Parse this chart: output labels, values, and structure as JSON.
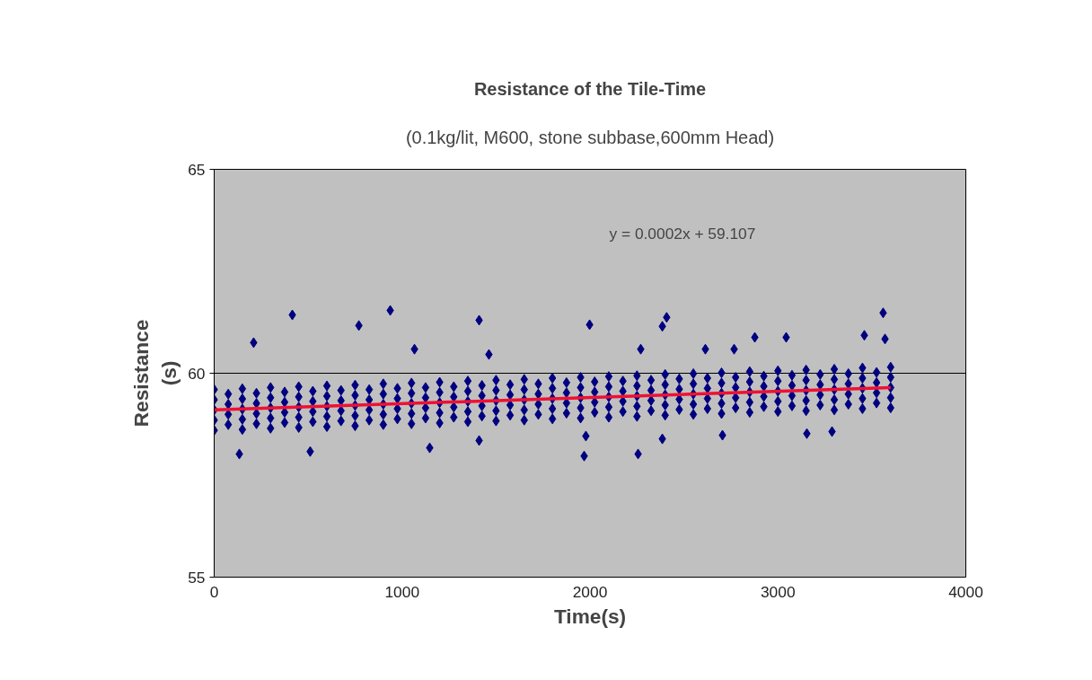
{
  "chart_data": {
    "type": "scatter",
    "title": "Resistance of the Tile-Time",
    "subtitle": "(0.1kg/lit, M600, stone subbase,600mm Head)",
    "xlabel": "Time(s)",
    "ylabel": "Resistance\n(s)",
    "annotations": [
      "y = 0.0002x + 59.107"
    ],
    "xlim": [
      0,
      4000
    ],
    "xticks": [
      0,
      1000,
      2000,
      3000,
      4000
    ],
    "ylim": [
      55,
      65
    ],
    "yticks": [
      55,
      60,
      65
    ],
    "grid": "y",
    "series": [
      {
        "color": "#000080",
        "marker": "diamond",
        "x": [
          0,
          150,
          300,
          450,
          600,
          750,
          900,
          1050,
          1200,
          1350,
          1500,
          1650,
          1800,
          1950,
          2100,
          2250,
          2400,
          2550,
          2700,
          2850,
          3000,
          3150,
          3300,
          3450,
          3600,
          0,
          150,
          300,
          450,
          600,
          750,
          900,
          1050,
          1200,
          1350,
          1500,
          1650,
          1800,
          1950,
          2100,
          2250,
          2400,
          2550,
          2700,
          2850,
          3000,
          3150,
          3300,
          3450,
          3600,
          0,
          150,
          300,
          450,
          600,
          750,
          900,
          1050,
          1200,
          1350,
          1500,
          1650,
          1800,
          1950,
          2100,
          2250,
          2400,
          2550,
          2700,
          2850,
          3000,
          3150,
          3300,
          3450,
          3600,
          0,
          150,
          300,
          450,
          600,
          750,
          900,
          1050,
          1200,
          1350,
          1500,
          1650,
          1800,
          1950,
          2100,
          2250,
          2400,
          2550,
          2700,
          2850,
          3000,
          3150,
          3300,
          3450,
          3600,
          0,
          150,
          300,
          450,
          600,
          750,
          900,
          1050,
          1200,
          1350,
          1500,
          1650,
          1800,
          1950,
          2100,
          2250,
          2400,
          2550,
          2700,
          2850,
          3000,
          3150,
          3300,
          3450,
          3600,
          75,
          225,
          375,
          525,
          675,
          825,
          975,
          1125,
          1275,
          1425,
          1575,
          1725,
          1875,
          2025,
          2175,
          2325,
          2475,
          2625,
          2775,
          2925,
          3075,
          3225,
          3375,
          3525,
          75,
          225,
          375,
          525,
          675,
          825,
          975,
          1125,
          1275,
          1425,
          1575,
          1725,
          1875,
          2025,
          2175,
          2325,
          2475,
          2625,
          2775,
          2925,
          3075,
          3225,
          3375,
          3525,
          75,
          225,
          375,
          525,
          675,
          825,
          975,
          1125,
          1275,
          1425,
          1575,
          1725,
          1875,
          2025,
          2175,
          2325,
          2475,
          2625,
          2775,
          2925,
          3075,
          3225,
          3375,
          3525,
          75,
          225,
          375,
          525,
          675,
          825,
          975,
          1125,
          1275,
          1425,
          1575,
          1725,
          1875,
          2025,
          2175,
          2325,
          2475,
          2625,
          2775,
          2925,
          3075,
          3225,
          3375,
          3525,
          416,
          937,
          770,
          210,
          1410,
          1066,
          1462,
          3560,
          2408,
          2385,
          1998,
          2877,
          3044,
          3460,
          3570,
          2614,
          2767,
          2270,
          134,
          1147,
          511,
          1410,
          1969,
          2256,
          2705,
          3288,
          3154,
          2385,
          1978
        ],
        "values": [
          58.6,
          58.62,
          58.65,
          58.67,
          58.69,
          58.71,
          58.74,
          58.76,
          58.78,
          58.81,
          58.83,
          58.85,
          58.88,
          58.9,
          58.92,
          58.94,
          58.97,
          58.99,
          59.01,
          59.04,
          59.06,
          59.08,
          59.1,
          59.13,
          59.15,
          58.85,
          58.87,
          58.9,
          58.92,
          58.94,
          58.96,
          58.99,
          59.01,
          59.03,
          59.06,
          59.08,
          59.1,
          59.13,
          59.15,
          59.17,
          59.19,
          59.22,
          59.24,
          59.26,
          59.29,
          59.31,
          59.33,
          59.35,
          59.38,
          59.4,
          59.1,
          59.12,
          59.15,
          59.17,
          59.19,
          59.21,
          59.24,
          59.26,
          59.28,
          59.31,
          59.33,
          59.35,
          59.38,
          59.4,
          59.42,
          59.44,
          59.47,
          59.49,
          59.51,
          59.54,
          59.56,
          59.58,
          59.6,
          59.63,
          59.65,
          59.35,
          59.37,
          59.4,
          59.42,
          59.44,
          59.46,
          59.49,
          59.51,
          59.53,
          59.56,
          59.58,
          59.6,
          59.63,
          59.65,
          59.67,
          59.69,
          59.72,
          59.74,
          59.76,
          59.79,
          59.81,
          59.83,
          59.85,
          59.88,
          59.9,
          59.6,
          59.62,
          59.65,
          59.67,
          59.69,
          59.71,
          59.74,
          59.76,
          59.78,
          59.81,
          59.83,
          59.85,
          59.88,
          59.9,
          59.92,
          59.94,
          59.97,
          59.99,
          60.01,
          60.04,
          60.06,
          60.08,
          60.1,
          60.13,
          60.15,
          58.74,
          58.76,
          58.79,
          58.81,
          58.83,
          58.85,
          58.88,
          58.9,
          58.92,
          58.95,
          58.97,
          58.99,
          59.02,
          59.04,
          59.06,
          59.08,
          59.11,
          59.13,
          59.15,
          59.18,
          59.2,
          59.22,
          59.24,
          59.27,
          58.99,
          59.01,
          59.04,
          59.06,
          59.08,
          59.1,
          59.13,
          59.15,
          59.17,
          59.2,
          59.22,
          59.24,
          59.27,
          59.29,
          59.31,
          59.33,
          59.36,
          59.38,
          59.4,
          59.43,
          59.45,
          59.47,
          59.49,
          59.52,
          59.24,
          59.26,
          59.29,
          59.31,
          59.33,
          59.35,
          59.38,
          59.4,
          59.42,
          59.45,
          59.47,
          59.49,
          59.52,
          59.54,
          59.56,
          59.58,
          59.61,
          59.63,
          59.65,
          59.68,
          59.7,
          59.72,
          59.74,
          59.77,
          59.49,
          59.51,
          59.54,
          59.56,
          59.58,
          59.6,
          59.63,
          59.65,
          59.67,
          59.7,
          59.72,
          59.74,
          59.77,
          59.79,
          59.81,
          59.83,
          59.86,
          59.88,
          59.9,
          59.93,
          59.95,
          59.97,
          59.99,
          60.02,
          61.43,
          61.54,
          61.17,
          60.75,
          61.3,
          60.59,
          60.46,
          61.48,
          61.37,
          61.15,
          61.19,
          60.88,
          60.88,
          60.93,
          60.84,
          60.59,
          60.59,
          60.59,
          58.02,
          58.17,
          58.08,
          58.35,
          57.97,
          58.02,
          58.48,
          58.57,
          58.52,
          58.39,
          58.46
        ]
      },
      {
        "type": "line",
        "color": "#ee1133",
        "x": [
          0,
          3600
        ],
        "values": [
          59.1,
          59.65
        ]
      }
    ]
  }
}
